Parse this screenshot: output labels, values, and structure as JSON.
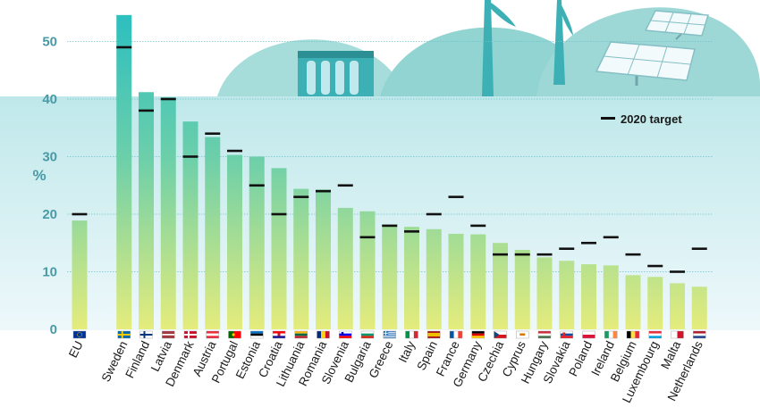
{
  "chart_data": {
    "type": "bar",
    "ylabel": "%",
    "ylim": [
      0,
      55
    ],
    "yticks": [
      "0",
      "10",
      "20",
      "30",
      "40",
      "50"
    ],
    "grid": true,
    "legend": {
      "position": "top-right",
      "target_label": "2020 target"
    },
    "categories": [
      "EU",
      "Sweden",
      "Finland",
      "Latvia",
      "Denmark",
      "Austria",
      "Portugal",
      "Estonia",
      "Croatia",
      "Lithuania",
      "Romania",
      "Slovenia",
      "Bulgaria",
      "Greece",
      "Italy",
      "Spain",
      "France",
      "Germany",
      "Czechia",
      "Cyprus",
      "Hungary",
      "Slovakia",
      "Poland",
      "Ireland",
      "Belgium",
      "Luxembourg",
      "Malta",
      "Netherlands"
    ],
    "series": [
      {
        "values": [
          18.9,
          54.6,
          41.2,
          40.3,
          36.1,
          33.4,
          30.3,
          30.0,
          28.0,
          24.4,
          24.3,
          21.1,
          20.5,
          18.2,
          17.8,
          17.4,
          16.6,
          16.5,
          15.0,
          13.8,
          12.5,
          11.9,
          11.3,
          11.1,
          9.4,
          9.1,
          8.0,
          7.4
        ]
      },
      {
        "name": "2020 target",
        "values": [
          20,
          49,
          38,
          40,
          30,
          34,
          31,
          25,
          20,
          23,
          24,
          25,
          16,
          18,
          17,
          20,
          23,
          18,
          13,
          13,
          13,
          14,
          15,
          16,
          13,
          11,
          10,
          14
        ]
      }
    ]
  },
  "colors": {
    "bar_top": "#33c3bd",
    "bar_bottom": "#dde97a",
    "background_top": "#bfe8ea",
    "background_bottom": "#eef8fb",
    "gridline": "#6fc3cc",
    "target_marker": "#111111",
    "hills": "#9ed8d6",
    "tick_label": "#4a9aa6"
  },
  "flags": [
    "eu-flag",
    "sweden-flag",
    "finland-flag",
    "latvia-flag",
    "denmark-flag",
    "austria-flag",
    "portugal-flag",
    "estonia-flag",
    "croatia-flag",
    "lithuania-flag",
    "romania-flag",
    "slovenia-flag",
    "bulgaria-flag",
    "greece-flag",
    "italy-flag",
    "spain-flag",
    "france-flag",
    "germany-flag",
    "czechia-flag",
    "cyprus-flag",
    "hungary-flag",
    "slovakia-flag",
    "poland-flag",
    "ireland-flag",
    "belgium-flag",
    "luxembourg-flag",
    "malta-flag",
    "netherlands-flag"
  ],
  "illustration": [
    "hydro-dam-icon",
    "wind-turbine-icon",
    "solar-panel-icon"
  ]
}
